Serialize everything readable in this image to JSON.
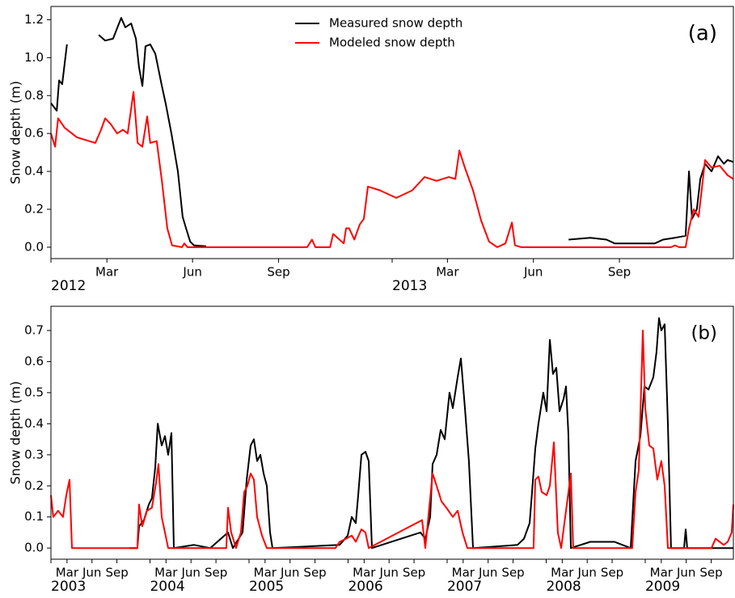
{
  "chart_data": [
    {
      "type": "line",
      "ylabel": "Snow depth (m)",
      "annotation": "(a)",
      "legend": "upper center",
      "xlim": [
        2012,
        2014
      ],
      "ylim": [
        -0.06,
        1.27
      ],
      "xticks": [
        {
          "value": 2012,
          "label": "2012"
        },
        {
          "value": 2012.164,
          "label": "Mar"
        },
        {
          "value": 2012.415,
          "label": "Jun"
        },
        {
          "value": 2012.667,
          "label": "Sep"
        },
        {
          "value": 2013,
          "label": "2013"
        },
        {
          "value": 2013.162,
          "label": "Mar"
        },
        {
          "value": 2013.414,
          "label": "Jun"
        },
        {
          "value": 2013.666,
          "label": "Sep"
        }
      ],
      "yticks": [
        {
          "value": 0,
          "label": "0.0"
        },
        0.2,
        0.4,
        0.6,
        0.8,
        {
          "value": 1,
          "label": "1.0"
        },
        1.2
      ],
      "series": [
        {
          "name": "Measured snow depth",
          "color": "#000000",
          "x": [
            2012.0,
            2012.017,
            2012.024,
            2012.033,
            2012.047,
            2012.09,
            2012.14,
            2012.159,
            2012.182,
            2012.206,
            2012.218,
            2012.235,
            2012.249,
            2012.258,
            2012.268,
            2012.277,
            2012.291,
            2012.306,
            2012.325,
            2012.336,
            2012.353,
            2012.372,
            2012.386,
            2012.396,
            2012.408,
            2012.419,
            2012.455,
            2013.0,
            2013.517,
            2013.581,
            2013.628,
            2013.652,
            2013.723,
            2013.77,
            2013.794,
            2013.829,
            2013.86,
            2013.87,
            2013.879,
            2013.893,
            2013.903,
            2013.917,
            2013.936,
            2013.955,
            2013.972,
            2013.983,
            2014.0
          ],
          "values": [
            0.76,
            0.72,
            0.88,
            0.86,
            1.07,
            null,
            1.12,
            1.09,
            1.1,
            1.21,
            1.16,
            1.18,
            1.1,
            0.95,
            0.85,
            1.06,
            1.07,
            1.02,
            0.85,
            0.76,
            0.6,
            0.4,
            0.16,
            0.1,
            0.03,
            0.01,
            0.005,
            null,
            0.04,
            0.05,
            0.04,
            0.02,
            0.02,
            0.02,
            0.04,
            0.05,
            0.06,
            0.4,
            0.15,
            0.2,
            0.36,
            0.44,
            0.4,
            0.48,
            0.44,
            0.46,
            0.45
          ]
        },
        {
          "name": "Modeled snow depth",
          "color": "#ff0000",
          "x": [
            2012.0,
            2012.012,
            2012.021,
            2012.04,
            2012.076,
            2012.13,
            2012.147,
            2012.159,
            2012.175,
            2012.194,
            2012.211,
            2012.225,
            2012.242,
            2012.254,
            2012.268,
            2012.282,
            2012.291,
            2012.31,
            2012.325,
            2012.341,
            2012.355,
            2012.384,
            2012.391,
            2012.4,
            2012.751,
            2012.765,
            2012.775,
            2012.818,
            2012.827,
            2012.858,
            2012.865,
            2012.874,
            2012.889,
            2012.905,
            2012.917,
            2012.929,
            2012.964,
            2013.012,
            2013.059,
            2013.095,
            2013.13,
            2013.166,
            2013.185,
            2013.197,
            2013.213,
            2013.237,
            2013.261,
            2013.284,
            2013.308,
            2013.332,
            2013.351,
            2013.36,
            2013.379,
            2013.817,
            2013.829,
            2013.841,
            2013.86,
            2013.87,
            2013.884,
            2013.898,
            2013.917,
            2013.936,
            2013.96,
            2013.983,
            2014.0
          ],
          "values": [
            0.6,
            0.53,
            0.68,
            0.63,
            0.58,
            0.55,
            0.62,
            0.68,
            0.65,
            0.6,
            0.62,
            0.6,
            0.82,
            0.55,
            0.53,
            0.69,
            0.55,
            0.56,
            0.35,
            0.1,
            0.01,
            0,
            0.02,
            0,
            0,
            0.04,
            0,
            0,
            0.07,
            0.02,
            0.1,
            0.1,
            0.04,
            0.12,
            0.15,
            0.32,
            0.3,
            0.26,
            0.3,
            0.37,
            0.35,
            0.37,
            0.36,
            0.51,
            0.42,
            0.3,
            0.14,
            0.03,
            0,
            0.02,
            0.13,
            0.01,
            0,
            0,
            0.01,
            0,
            0,
            0.1,
            0.2,
            0.16,
            0.46,
            0.42,
            0.43,
            0.38,
            0.36
          ]
        }
      ]
    },
    {
      "type": "line",
      "ylabel": "Snow depth (m)",
      "annotation": "(b)",
      "xlim": [
        2003,
        2009.89
      ],
      "ylim": [
        -0.036,
        0.778
      ],
      "xticks": [
        {
          "value": 2003,
          "label": "2003"
        },
        {
          "value": 2003.162,
          "label": "Mar"
        },
        {
          "value": 2003.414,
          "label": "Jun"
        },
        {
          "value": 2003.666,
          "label": "Sep"
        },
        {
          "value": 2004,
          "label": "2004"
        },
        {
          "value": 2004.162,
          "label": "Mar"
        },
        {
          "value": 2004.414,
          "label": "Jun"
        },
        {
          "value": 2004.666,
          "label": "Sep"
        },
        {
          "value": 2005,
          "label": "2005"
        },
        {
          "value": 2005.162,
          "label": "Mar"
        },
        {
          "value": 2005.414,
          "label": "Jun"
        },
        {
          "value": 2005.666,
          "label": "Sep"
        },
        {
          "value": 2006,
          "label": "2006"
        },
        {
          "value": 2006.162,
          "label": "Mar"
        },
        {
          "value": 2006.414,
          "label": "Jun"
        },
        {
          "value": 2006.666,
          "label": "Sep"
        },
        {
          "value": 2007,
          "label": "2007"
        },
        {
          "value": 2007.162,
          "label": "Mar"
        },
        {
          "value": 2007.414,
          "label": "Jun"
        },
        {
          "value": 2007.666,
          "label": "Sep"
        },
        {
          "value": 2008,
          "label": "2008"
        },
        {
          "value": 2008.162,
          "label": "Mar"
        },
        {
          "value": 2008.414,
          "label": "Jun"
        },
        {
          "value": 2008.666,
          "label": "Sep"
        },
        {
          "value": 2009,
          "label": "2009"
        },
        {
          "value": 2009.162,
          "label": "Mar"
        },
        {
          "value": 2009.414,
          "label": "Jun"
        },
        {
          "value": 2009.666,
          "label": "Sep"
        }
      ],
      "yticks": [
        {
          "value": 0,
          "label": "0.0"
        },
        0.1,
        0.2,
        0.3,
        0.4,
        0.5,
        0.6,
        0.7
      ],
      "series": [
        {
          "color": "#000000",
          "x": [
            2003.792,
            2003.873,
            2003.89,
            2003.939,
            2003.988,
            2004.02,
            2004.053,
            2004.078,
            2004.118,
            2004.151,
            2004.184,
            2004.216,
            2004.241,
            2004.445,
            2004.608,
            2004.788,
            2004.837,
            2004.935,
            2004.976,
            2005.016,
            2005.049,
            2005.082,
            2005.114,
            2005.147,
            2005.18,
            2005.212,
            2005.237,
            2005.914,
            2005.996,
            2006.037,
            2006.078,
            2006.102,
            2006.135,
            2006.176,
            2006.208,
            2006.241,
            2006.731,
            2006.78,
            2006.829,
            2006.853,
            2006.894,
            2006.935,
            2006.976,
            2007.024,
            2007.057,
            2007.106,
            2007.139,
            2007.18,
            2007.22,
            2007.261,
            2007.71,
            2007.776,
            2007.833,
            2007.857,
            2007.89,
            2007.922,
            2007.971,
            2008.004,
            2008.037,
            2008.069,
            2008.102,
            2008.135,
            2008.176,
            2008.2,
            2008.224,
            2008.249,
            2008.445,
            2008.69,
            2008.853,
            2008.902,
            2008.951,
            2008.992,
            2009.033,
            2009.082,
            2009.114,
            2009.139,
            2009.163,
            2009.196,
            2009.229,
            2009.261,
            2009.392,
            2009.408,
            2009.424,
            2009.89
          ],
          "values": [
            0,
            0,
            0.07,
            0.09,
            0.14,
            0.16,
            0.26,
            0.4,
            0.33,
            0.36,
            0.3,
            0.37,
            0,
            0.01,
            0,
            0.05,
            0,
            0.05,
            0.22,
            0.33,
            0.35,
            0.28,
            0.3,
            0.24,
            0.2,
            0.05,
            0,
            0.01,
            0.04,
            0.1,
            0.08,
            0.17,
            0.3,
            0.31,
            0.28,
            0,
            0.05,
            0.03,
            0.1,
            0.27,
            0.3,
            0.38,
            0.35,
            0.5,
            0.45,
            0.55,
            0.61,
            0.45,
            0.28,
            0,
            0.01,
            0.03,
            0.08,
            0.18,
            0.32,
            0.4,
            0.5,
            0.44,
            0.67,
            0.56,
            0.58,
            0.44,
            0.48,
            0.52,
            0.37,
            0,
            0.02,
            0.02,
            0,
            0.28,
            0.36,
            0.52,
            0.51,
            0.55,
            0.63,
            0.74,
            0.7,
            0.72,
            0.4,
            0,
            0,
            0.06,
            0,
            0
          ]
        },
        {
          "color": "#ff0000",
          "x": [
            2003.0,
            2003.024,
            2003.073,
            2003.122,
            2003.155,
            2003.188,
            2003.212,
            2003.873,
            2003.89,
            2003.922,
            2003.971,
            2004.02,
            2004.061,
            2004.086,
            2004.118,
            2004.151,
            2004.184,
            2004.771,
            2004.788,
            2004.82,
            2004.869,
            2004.918,
            2004.951,
            2004.984,
            2005.016,
            2005.049,
            2005.082,
            2005.131,
            2005.18,
            2005.873,
            2005.914,
            2005.98,
            2006.037,
            2006.078,
            2006.135,
            2006.176,
            2006.208,
            2006.747,
            2006.78,
            2006.853,
            2006.894,
            2006.943,
            2006.992,
            2007.057,
            2007.106,
            2007.155,
            2007.204,
            2007.873,
            2007.89,
            2007.922,
            2007.955,
            2008.004,
            2008.037,
            2008.078,
            2008.118,
            2008.151,
            2008.249,
            2008.273,
            2008.869,
            2008.902,
            2008.935,
            2008.976,
            2009.0,
            2009.041,
            2009.082,
            2009.122,
            2009.163,
            2009.196,
            2009.229,
            2009.669,
            2009.71,
            2009.792,
            2009.833,
            2009.873,
            2009.89
          ],
          "values": [
            0.17,
            0.1,
            0.12,
            0.1,
            0.17,
            0.22,
            0,
            0,
            0.14,
            0.07,
            0.12,
            0.13,
            0.21,
            0.27,
            0.1,
            0.05,
            0,
            0,
            0.13,
            0.05,
            0,
            0.05,
            0.18,
            0.2,
            0.24,
            0.22,
            0.1,
            0.04,
            0,
            0,
            0.02,
            0.03,
            0.04,
            0.02,
            0.06,
            0.05,
            0,
            0.09,
            0,
            0.24,
            0.2,
            0.15,
            0.13,
            0.1,
            0.12,
            0.05,
            0,
            0,
            0.22,
            0.23,
            0.18,
            0.17,
            0.2,
            0.34,
            0.05,
            0,
            0.24,
            0,
            0,
            0.18,
            0.25,
            0.7,
            0.45,
            0.33,
            0.32,
            0.22,
            0.28,
            0.2,
            0,
            0,
            0.03,
            0.01,
            0.02,
            0.05,
            0.14
          ]
        }
      ]
    }
  ]
}
